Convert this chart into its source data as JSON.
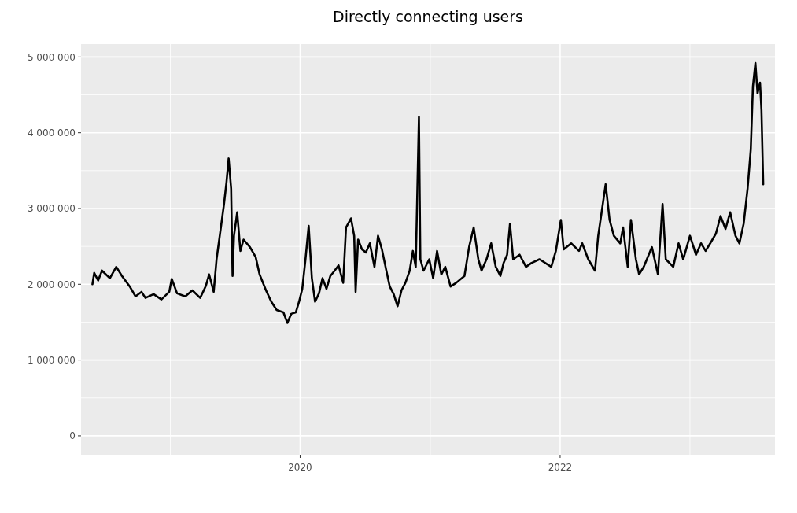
{
  "chart_data": {
    "type": "line",
    "title": "Directly connecting users",
    "x": [
      "2018-05-27",
      "2018-06-01",
      "2018-06-12",
      "2018-06-23",
      "2018-07-15",
      "2018-08-02",
      "2018-08-18",
      "2018-09-09",
      "2018-09-25",
      "2018-10-12",
      "2018-10-23",
      "2018-11-15",
      "2018-12-07",
      "2018-12-29",
      "2019-01-05",
      "2019-01-20",
      "2019-02-12",
      "2019-03-04",
      "2019-03-26",
      "2019-04-11",
      "2019-04-20",
      "2019-05-03",
      "2019-05-11",
      "2019-05-20",
      "2019-06-01",
      "2019-06-08",
      "2019-06-14",
      "2019-06-21",
      "2019-06-25",
      "2019-06-29",
      "2019-07-08",
      "2019-07-17",
      "2019-07-26",
      "2019-08-13",
      "2019-08-29",
      "2019-09-09",
      "2019-09-27",
      "2019-10-12",
      "2019-10-27",
      "2019-11-15",
      "2019-11-26",
      "2019-12-07",
      "2019-12-20",
      "2019-12-29",
      "2020-01-07",
      "2020-01-16",
      "2020-01-25",
      "2020-02-03",
      "2020-02-12",
      "2020-02-23",
      "2020-03-04",
      "2020-03-15",
      "2020-03-26",
      "2020-04-07",
      "2020-04-18",
      "2020-05-01",
      "2020-05-09",
      "2020-05-23",
      "2020-06-01",
      "2020-06-05",
      "2020-06-12",
      "2020-06-23",
      "2020-07-04",
      "2020-07-15",
      "2020-07-28",
      "2020-08-07",
      "2020-08-18",
      "2020-08-29",
      "2020-09-09",
      "2020-09-20",
      "2020-10-01",
      "2020-10-12",
      "2020-10-23",
      "2020-11-04",
      "2020-11-13",
      "2020-11-21",
      "2020-11-30",
      "2020-12-04",
      "2020-12-13",
      "2020-12-29",
      "2021-01-09",
      "2021-01-20",
      "2021-02-01",
      "2021-02-12",
      "2021-02-27",
      "2021-03-15",
      "2021-04-07",
      "2021-04-20",
      "2021-05-03",
      "2021-05-16",
      "2021-05-25",
      "2021-06-08",
      "2021-06-21",
      "2021-07-04",
      "2021-07-17",
      "2021-07-26",
      "2021-08-05",
      "2021-08-13",
      "2021-08-22",
      "2021-09-09",
      "2021-09-27",
      "2021-10-12",
      "2021-11-04",
      "2021-12-07",
      "2021-12-20",
      "2022-01-03",
      "2022-01-11",
      "2022-02-01",
      "2022-02-23",
      "2022-03-04",
      "2022-03-21",
      "2022-04-09",
      "2022-04-18",
      "2022-05-01",
      "2022-05-09",
      "2022-05-20",
      "2022-06-01",
      "2022-06-19",
      "2022-06-27",
      "2022-07-10",
      "2022-07-19",
      "2022-08-02",
      "2022-08-11",
      "2022-08-24",
      "2022-09-16",
      "2022-10-03",
      "2022-10-16",
      "2022-10-25",
      "2022-11-15",
      "2022-11-30",
      "2022-12-13",
      "2023-01-01",
      "2023-01-18",
      "2023-02-01",
      "2023-02-14",
      "2023-02-27",
      "2023-03-15",
      "2023-03-28",
      "2023-04-11",
      "2023-04-24",
      "2023-05-09",
      "2023-05-20",
      "2023-06-01",
      "2023-06-12",
      "2023-06-21",
      "2023-06-27",
      "2023-07-04",
      "2023-07-10",
      "2023-07-17",
      "2023-07-21",
      "2023-07-26"
    ],
    "series": [
      {
        "color": "#000000",
        "values": [
          2000000,
          2150000,
          2050000,
          2180000,
          2080000,
          2230000,
          2110000,
          1970000,
          1840000,
          1900000,
          1820000,
          1870000,
          1800000,
          1900000,
          2070000,
          1880000,
          1840000,
          1920000,
          1820000,
          1980000,
          2130000,
          1900000,
          2330000,
          2640000,
          3060000,
          3350000,
          3660000,
          3260000,
          2110000,
          2640000,
          2950000,
          2440000,
          2590000,
          2490000,
          2360000,
          2130000,
          1920000,
          1770000,
          1660000,
          1630000,
          1490000,
          1610000,
          1630000,
          1770000,
          1940000,
          2330000,
          2770000,
          2080000,
          1770000,
          1880000,
          2080000,
          1940000,
          2110000,
          2180000,
          2250000,
          2020000,
          2750000,
          2870000,
          2640000,
          1900000,
          2590000,
          2460000,
          2420000,
          2540000,
          2230000,
          2640000,
          2460000,
          2210000,
          1970000,
          1870000,
          1710000,
          1920000,
          2020000,
          2180000,
          2440000,
          2230000,
          4210000,
          2330000,
          2180000,
          2330000,
          2080000,
          2440000,
          2130000,
          2230000,
          1970000,
          2020000,
          2110000,
          2490000,
          2750000,
          2330000,
          2180000,
          2330000,
          2540000,
          2230000,
          2110000,
          2280000,
          2390000,
          2800000,
          2330000,
          2390000,
          2230000,
          2280000,
          2330000,
          2230000,
          2440000,
          2850000,
          2460000,
          2540000,
          2440000,
          2540000,
          2330000,
          2180000,
          2640000,
          3060000,
          3320000,
          2850000,
          2640000,
          2540000,
          2750000,
          2230000,
          2850000,
          2330000,
          2130000,
          2230000,
          2490000,
          2130000,
          3060000,
          2330000,
          2230000,
          2540000,
          2330000,
          2640000,
          2390000,
          2540000,
          2440000,
          2540000,
          2670000,
          2900000,
          2730000,
          2950000,
          2640000,
          2540000,
          2800000,
          3260000,
          3780000,
          4610000,
          4920000,
          4520000,
          4660000,
          4300000,
          3320000
        ]
      }
    ],
    "xlim": [
      "2018-04-25",
      "2023-08-28"
    ],
    "xticks": [
      {
        "value": "2019",
        "label": null
      },
      "2020",
      {
        "value": "2021",
        "label": null
      },
      "2022",
      {
        "value": "2023",
        "label": null
      }
    ],
    "ylim": [
      -250000,
      5170000
    ],
    "yticks": [
      {
        "value": 0,
        "label": "0"
      },
      {
        "value": 500000,
        "label": null
      },
      {
        "value": 1000000,
        "label": "1 000 000"
      },
      {
        "value": 1500000,
        "label": null
      },
      {
        "value": 2000000,
        "label": "2 000 000"
      },
      {
        "value": 2500000,
        "label": null
      },
      {
        "value": 3000000,
        "label": "3 000 000"
      },
      {
        "value": 3500000,
        "label": null
      },
      {
        "value": 4000000,
        "label": "4 000 000"
      },
      {
        "value": 4500000,
        "label": null
      },
      {
        "value": 5000000,
        "label": "5 000 000"
      }
    ],
    "grid": true
  }
}
